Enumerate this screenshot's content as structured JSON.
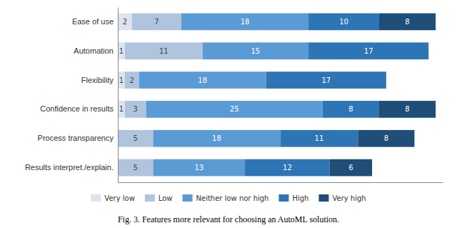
{
  "chart_data": {
    "type": "bar",
    "orientation": "horizontal",
    "stacked": true,
    "data_labels": true,
    "tick_labels": "y",
    "grid": false,
    "legend": "bottom",
    "caption": "Fig. 3.  Features more relevant for choosing an AutoML solution.",
    "categories": [
      "Ease of use",
      "Automation",
      "Flexibility",
      "Confidence in results",
      "Process transparency",
      "Results interpret./explain."
    ],
    "xlim": [
      0,
      46
    ],
    "series": [
      {
        "name": "Very low",
        "color": "#dde3ef",
        "values": [
          2,
          1,
          1,
          1,
          0,
          0
        ]
      },
      {
        "name": "Low",
        "color": "#b0c4de",
        "values": [
          7,
          11,
          2,
          3,
          5,
          5
        ]
      },
      {
        "name": "Neither low nor high",
        "color": "#5b9bd5",
        "values": [
          18,
          15,
          18,
          25,
          18,
          13
        ]
      },
      {
        "name": "High",
        "color": "#2e75b6",
        "values": [
          10,
          17,
          17,
          8,
          11,
          12
        ]
      },
      {
        "name": "Very high",
        "color": "#1f4e79",
        "values": [
          8,
          0,
          0,
          8,
          8,
          6
        ]
      }
    ]
  }
}
